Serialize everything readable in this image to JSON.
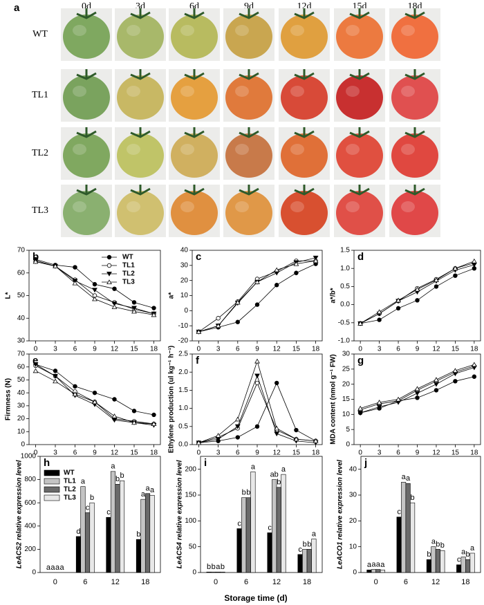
{
  "panel_a": {
    "letter": "a",
    "days": [
      "0d",
      "3d",
      "6d",
      "9d",
      "12d",
      "15d",
      "18d"
    ],
    "lines": [
      "WT",
      "TL1",
      "TL2",
      "TL3"
    ]
  },
  "x_label": "Storage time (d)",
  "chart_data": [
    {
      "type": "line",
      "panel": "b",
      "y_label": "L*",
      "x": [
        0,
        3,
        6,
        9,
        12,
        15,
        18
      ],
      "xlim": [
        -1,
        19
      ],
      "xticks": [
        0,
        3,
        6,
        9,
        12,
        15,
        18
      ],
      "ylim": [
        30,
        70
      ],
      "yticks": [
        30,
        40,
        50,
        60,
        70
      ],
      "legend": "upper right",
      "series": [
        {
          "name": "WT",
          "marker": "circle",
          "filled": true,
          "values": [
            66,
            63.5,
            62.5,
            55,
            53,
            47,
            44.5
          ]
        },
        {
          "name": "TL1",
          "marker": "circle",
          "filled": false,
          "values": [
            65,
            63,
            57,
            50,
            47,
            44,
            42
          ]
        },
        {
          "name": "TL2",
          "marker": "triangle-down",
          "filled": true,
          "values": [
            65.5,
            63,
            56.5,
            52.5,
            46.5,
            44.5,
            42
          ]
        },
        {
          "name": "TL3",
          "marker": "triangle-up",
          "filled": false,
          "values": [
            65,
            63,
            55.5,
            48.5,
            45,
            43,
            41.5
          ]
        }
      ]
    },
    {
      "type": "line",
      "panel": "c",
      "y_label": "a*",
      "x": [
        0,
        3,
        6,
        9,
        12,
        15,
        18
      ],
      "xlim": [
        -1,
        19
      ],
      "xticks": [
        0,
        3,
        6,
        9,
        12,
        15,
        18
      ],
      "ylim": [
        -20,
        40
      ],
      "yticks": [
        -20,
        -10,
        0,
        10,
        20,
        30,
        40
      ],
      "series": [
        {
          "name": "WT",
          "marker": "circle",
          "filled": true,
          "values": [
            -14,
            -11,
            -7.5,
            4,
            17,
            25,
            31
          ]
        },
        {
          "name": "TL1",
          "marker": "circle",
          "filled": false,
          "values": [
            -14,
            -5,
            6,
            21,
            26,
            33,
            33
          ]
        },
        {
          "name": "TL2",
          "marker": "triangle-down",
          "filled": true,
          "values": [
            -14,
            -10,
            5,
            19,
            25,
            32,
            35
          ]
        },
        {
          "name": "TL3",
          "marker": "triangle-up",
          "filled": false,
          "values": [
            -14,
            -10,
            5.5,
            19,
            27,
            31,
            33
          ]
        }
      ]
    },
    {
      "type": "line",
      "panel": "d",
      "y_label": "a*/b*",
      "x": [
        0,
        3,
        6,
        9,
        12,
        15,
        18
      ],
      "xlim": [
        -1,
        19
      ],
      "xticks": [
        0,
        3,
        6,
        9,
        12,
        15,
        18
      ],
      "ylim": [
        -1,
        1.5
      ],
      "yticks": [
        {
          "value": -1,
          "label": "-1.0"
        },
        -0.5,
        {
          "value": 0,
          "label": "0.0"
        },
        0.5,
        {
          "value": 1,
          "label": "1.0"
        },
        1.5
      ],
      "series": [
        {
          "name": "WT",
          "marker": "circle",
          "filled": true,
          "values": [
            -0.52,
            -0.42,
            -0.1,
            0.12,
            0.5,
            0.8,
            1.0
          ]
        },
        {
          "name": "TL1",
          "marker": "circle",
          "filled": false,
          "values": [
            -0.52,
            -0.25,
            0.1,
            0.45,
            0.7,
            1.0,
            1.15
          ]
        },
        {
          "name": "TL2",
          "marker": "triangle-down",
          "filled": true,
          "values": [
            -0.52,
            -0.25,
            0.1,
            0.35,
            0.65,
            0.95,
            1.1
          ]
        },
        {
          "name": "TL3",
          "marker": "triangle-up",
          "filled": false,
          "values": [
            -0.52,
            -0.2,
            0.12,
            0.42,
            0.68,
            1.0,
            1.2
          ]
        }
      ]
    },
    {
      "type": "line",
      "panel": "e",
      "y_label": "Firmness (N)",
      "x": [
        0,
        3,
        6,
        9,
        12,
        15,
        18
      ],
      "xlim": [
        -1,
        19
      ],
      "xticks": [
        0,
        3,
        6,
        9,
        12,
        15,
        18
      ],
      "ylim": [
        0,
        70
      ],
      "yticks": [
        0,
        10,
        20,
        30,
        40,
        50,
        60,
        70
      ],
      "series": [
        {
          "name": "WT",
          "marker": "circle",
          "filled": true,
          "values": [
            62,
            57,
            45,
            40,
            35,
            26,
            23
          ]
        },
        {
          "name": "TL1",
          "marker": "circle",
          "filled": false,
          "values": [
            61,
            53,
            41,
            33,
            20,
            18,
            16
          ]
        },
        {
          "name": "TL2",
          "marker": "triangle-down",
          "filled": true,
          "values": [
            62,
            53,
            38,
            31,
            19,
            17,
            15
          ]
        },
        {
          "name": "TL3",
          "marker": "triangle-up",
          "filled": false,
          "values": [
            57,
            49,
            39,
            33,
            22,
            17,
            16
          ]
        }
      ]
    },
    {
      "type": "line",
      "panel": "f",
      "y_label": "Ethylene production (ul kg⁻¹ h⁻¹)",
      "x": [
        0,
        3,
        6,
        9,
        12,
        15,
        18
      ],
      "xlim": [
        -1,
        19
      ],
      "xticks": [
        0,
        3,
        6,
        9,
        12,
        15,
        18
      ],
      "ylim": [
        0,
        2.5
      ],
      "yticks": [
        {
          "value": 0,
          "label": "0.0"
        },
        0.5,
        {
          "value": 1,
          "label": "1.0"
        },
        1.5,
        {
          "value": 2,
          "label": "2.0"
        },
        2.5
      ],
      "series": [
        {
          "name": "WT",
          "marker": "circle",
          "filled": true,
          "values": [
            0.05,
            0.1,
            0.2,
            0.5,
            1.7,
            0.4,
            0.1
          ]
        },
        {
          "name": "TL1",
          "marker": "circle",
          "filled": false,
          "values": [
            0.05,
            0.2,
            0.45,
            1.7,
            0.4,
            0.15,
            0.1
          ]
        },
        {
          "name": "TL2",
          "marker": "triangle-down",
          "filled": true,
          "values": [
            0.05,
            0.15,
            0.5,
            1.9,
            0.3,
            0.1,
            0.05
          ]
        },
        {
          "name": "TL3",
          "marker": "triangle-up",
          "filled": false,
          "values": [
            0.05,
            0.25,
            0.7,
            2.3,
            0.45,
            0.15,
            0.1
          ]
        }
      ]
    },
    {
      "type": "line",
      "panel": "g",
      "y_label": "MDA content (nmol g⁻¹ FW)",
      "x": [
        0,
        3,
        6,
        9,
        12,
        15,
        18
      ],
      "xlim": [
        -1,
        19
      ],
      "xticks": [
        0,
        3,
        6,
        9,
        12,
        15,
        18
      ],
      "ylim": [
        0,
        30
      ],
      "yticks": [
        0,
        5,
        10,
        15,
        20,
        25,
        30
      ],
      "series": [
        {
          "name": "WT",
          "marker": "circle",
          "filled": true,
          "values": [
            10.5,
            12,
            14.5,
            15.5,
            18,
            21,
            22.5
          ]
        },
        {
          "name": "TL1",
          "marker": "circle",
          "filled": false,
          "values": [
            11.5,
            13.5,
            14.5,
            18,
            21,
            24,
            26
          ]
        },
        {
          "name": "TL2",
          "marker": "triangle-down",
          "filled": true,
          "values": [
            10.5,
            12.5,
            14,
            17,
            20,
            23.5,
            25.5
          ]
        },
        {
          "name": "TL3",
          "marker": "triangle-up",
          "filled": false,
          "values": [
            12,
            14,
            15,
            18.5,
            21.5,
            24.5,
            26.5
          ]
        }
      ]
    },
    {
      "type": "bar",
      "panel": "h",
      "y_label": "LeACS2 relative expression level",
      "categories": [
        "0",
        "6",
        "12",
        "18"
      ],
      "ylim": [
        0,
        1000
      ],
      "yticks": [
        0,
        200,
        400,
        600,
        800,
        1000
      ],
      "legend": "upper left",
      "series": [
        {
          "name": "WT",
          "color": "#000000",
          "values": [
            0,
            310,
            475,
            285
          ],
          "significance": [
            "a",
            "d",
            "c",
            "b"
          ]
        },
        {
          "name": "TL1",
          "color": "#c4c4c4",
          "values": [
            0,
            740,
            870,
            630
          ],
          "significance": [
            "a",
            "a",
            "a",
            "a"
          ]
        },
        {
          "name": "TL2",
          "color": "#6a6a6a",
          "values": [
            0,
            515,
            760,
            680
          ],
          "significance": [
            "a",
            "c",
            "b",
            "a"
          ]
        },
        {
          "name": "TL3",
          "color": "#e8e8e8",
          "values": [
            0,
            600,
            790,
            665
          ],
          "significance": [
            "a",
            "b",
            "b",
            "a"
          ]
        }
      ]
    },
    {
      "type": "bar",
      "panel": "i",
      "y_label": "LeACS4 relative expression level",
      "categories": [
        "0",
        "6",
        "12",
        "18"
      ],
      "ylim": [
        0,
        225
      ],
      "yticks": [
        0,
        50,
        100,
        150,
        200
      ],
      "series": [
        {
          "name": "WT",
          "color": "#000000",
          "values": [
            1,
            85,
            77,
            35
          ],
          "significance": [
            "b",
            "c",
            "c",
            "c"
          ]
        },
        {
          "name": "TL1",
          "color": "#c4c4c4",
          "values": [
            1,
            145,
            180,
            45
          ],
          "significance": [
            "b",
            "b",
            "ab",
            "b"
          ]
        },
        {
          "name": "TL2",
          "color": "#6a6a6a",
          "values": [
            1,
            145,
            165,
            45
          ],
          "significance": [
            "a",
            "b",
            "b",
            "b"
          ]
        },
        {
          "name": "TL3",
          "color": "#e8e8e8",
          "values": [
            1,
            195,
            190,
            65
          ],
          "significance": [
            "b",
            "a",
            "a",
            "a"
          ]
        }
      ]
    },
    {
      "type": "bar",
      "panel": "j",
      "y_label": "LeACO1 relative expression level",
      "categories": [
        "0",
        "6",
        "12",
        "18"
      ],
      "ylim": [
        0,
        45
      ],
      "yticks": [
        0,
        10,
        20,
        30,
        40
      ],
      "series": [
        {
          "name": "WT",
          "color": "#000000",
          "values": [
            1,
            21.5,
            5,
            3
          ],
          "significance": [
            "a",
            "c",
            "b",
            "c"
          ]
        },
        {
          "name": "TL1",
          "color": "#c4c4c4",
          "values": [
            1.2,
            35,
            10,
            6
          ],
          "significance": [
            "a",
            "a",
            "a",
            "a"
          ]
        },
        {
          "name": "TL2",
          "color": "#6a6a6a",
          "values": [
            1.2,
            34.5,
            9,
            5
          ],
          "significance": [
            "a",
            "a",
            "b",
            "b"
          ]
        },
        {
          "name": "TL3",
          "color": "#e8e8e8",
          "values": [
            1,
            27,
            8.5,
            7.5
          ],
          "significance": [
            "a",
            "b",
            "b",
            "a"
          ]
        }
      ]
    }
  ]
}
